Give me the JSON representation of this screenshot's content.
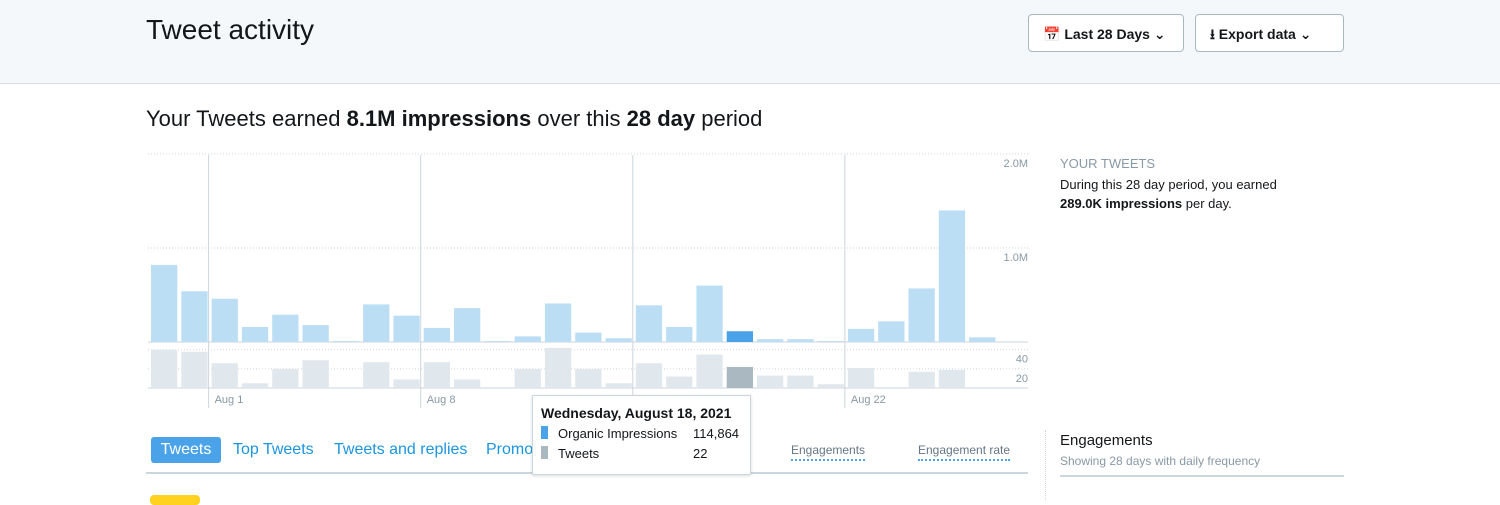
{
  "header": {
    "title": "Tweet activity",
    "date_button": "Last 28 Days",
    "export_button": "Export data"
  },
  "summary": {
    "parts": [
      "Your Tweets earned ",
      "8.1M impressions",
      " over this ",
      "28 day",
      " period"
    ]
  },
  "chart_data": [
    {
      "type": "bar",
      "name": "Organic Impressions",
      "color": "#bcdef5",
      "highlight_color": "#4aa3e8",
      "highlight": 19,
      "categories": [
        null,
        null,
        "Aug 1",
        null,
        null,
        null,
        null,
        null,
        null,
        "Aug 8",
        null,
        null,
        null,
        null,
        null,
        null,
        null,
        null,
        null,
        null,
        null,
        null,
        null,
        "Aug 22",
        null,
        null,
        null,
        null
      ],
      "values": [
        820000,
        540000,
        460000,
        160000,
        290000,
        180000,
        10000,
        400000,
        280000,
        150000,
        360000,
        10000,
        60000,
        410000,
        100000,
        40000,
        390000,
        160000,
        600000,
        114864,
        30000,
        30000,
        10000,
        140000,
        220000,
        570000,
        1400000,
        50000
      ],
      "ylim": [
        0,
        2000000
      ],
      "yticks": [
        {
          "value": 1000000,
          "label": "1.0M"
        },
        {
          "value": 2000000,
          "label": "2.0M"
        }
      ],
      "grid": true
    },
    {
      "type": "bar",
      "name": "Tweets",
      "color": "#e1e8ed",
      "highlight_color": "#aab8c2",
      "highlight": 19,
      "values": [
        40,
        38,
        26,
        5,
        20,
        29,
        1,
        27,
        9,
        27,
        9,
        1,
        20,
        42,
        20,
        5,
        26,
        12,
        35,
        22,
        13,
        13,
        4,
        21,
        1,
        17,
        19,
        1
      ],
      "ylim": [
        0,
        45
      ],
      "yticks": [
        20,
        40
      ],
      "grid": true
    }
  ],
  "tooltip": {
    "title": "Wednesday, August 18, 2021",
    "items": [
      {
        "name": "Organic Impressions",
        "value": "114,864",
        "color": "#4aa3e8"
      },
      {
        "name": "Tweets",
        "value": "22",
        "color": "#aab8c2"
      }
    ]
  },
  "sidebar": {
    "heading": "YOUR TWEETS",
    "line1": "During this 28 day period, you earned",
    "bold": "289.0K impressions",
    "rest": " per day.",
    "engagements_title": "Engagements",
    "engagements_sub": "Showing 28 days with daily frequency"
  },
  "tabs": [
    "Tweets",
    "Top Tweets",
    "Tweets and replies",
    "Promoted"
  ],
  "columns": [
    "Engagements",
    "Engagement rate"
  ]
}
